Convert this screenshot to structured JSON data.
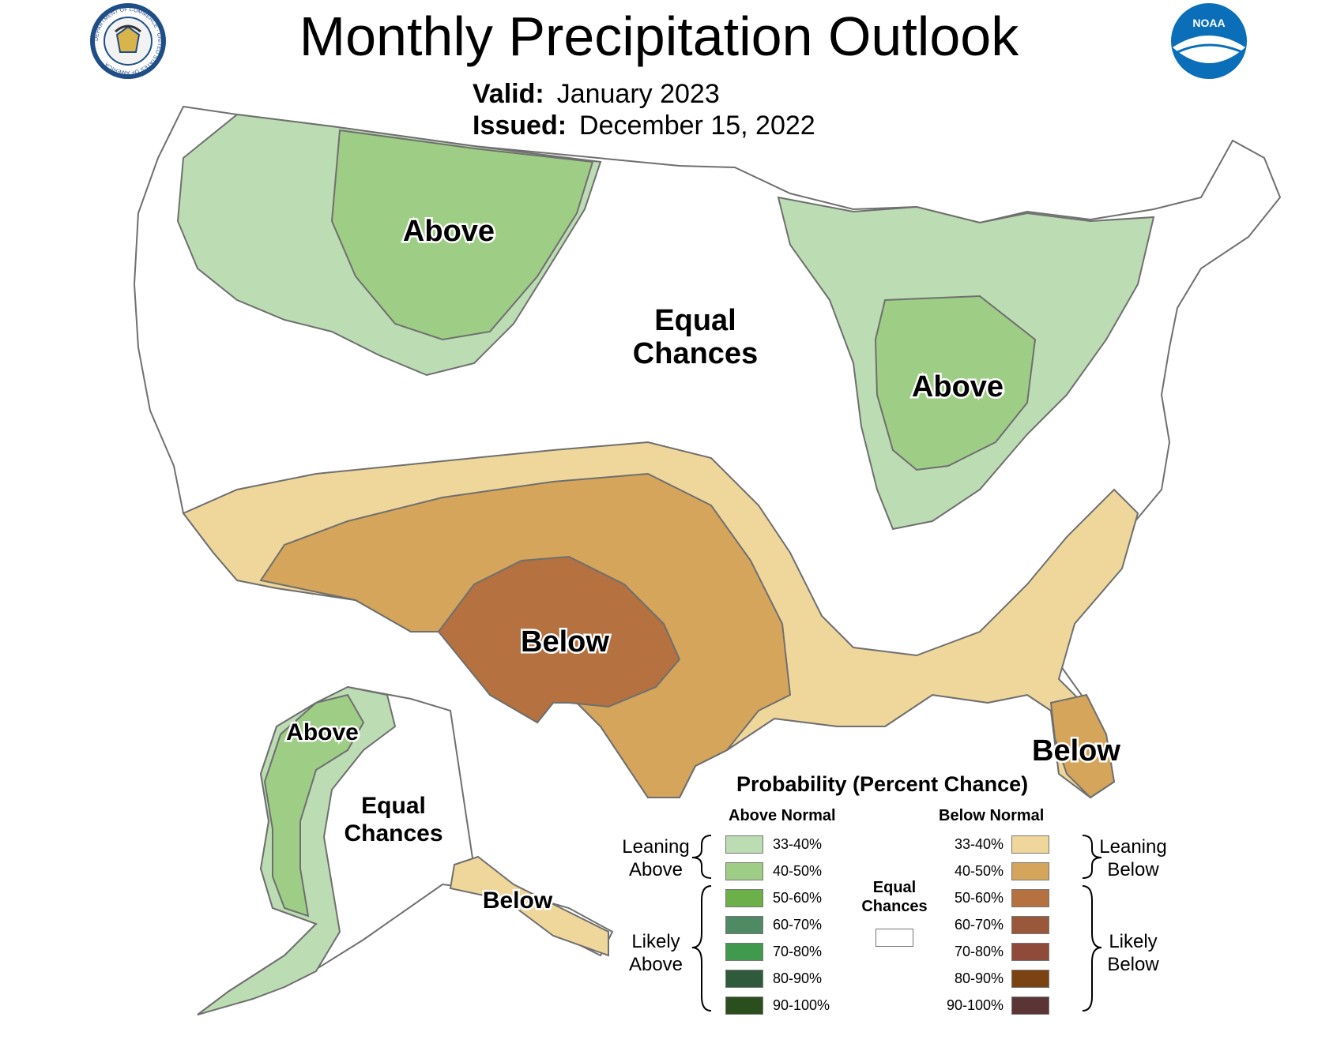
{
  "header": {
    "title": "Monthly Precipitation Outlook",
    "valid_label": "Valid:",
    "valid_value": "January 2023",
    "issued_label": "Issued:",
    "issued_value": "December 15, 2022"
  },
  "logos": {
    "left_icon": "department-of-commerce-seal-icon",
    "left_seal_text": "DEPARTMENT OF COMMERCE · UNITED STATES OF AMERICA",
    "right_icon": "noaa-logo-icon",
    "right_text": "NOAA"
  },
  "map_labels": {
    "northwest_above": "Above",
    "center_equal_1": "Equal",
    "center_equal_2": "Chances",
    "ohio_above": "Above",
    "southwest_below": "Below",
    "florida_below": "Below",
    "alaska_above": "Above",
    "alaska_equal_1": "Equal",
    "alaska_equal_2": "Chances",
    "alaska_below": "Below"
  },
  "legend": {
    "title": "Probability (Percent Chance)",
    "above_header": "Above Normal",
    "below_header": "Below Normal",
    "leaning_above": [
      "Leaning",
      "Above"
    ],
    "likely_above": [
      "Likely",
      "Above"
    ],
    "leaning_below": [
      "Leaning",
      "Below"
    ],
    "likely_below": [
      "Likely",
      "Below"
    ],
    "equal_chances": [
      "Equal",
      "Chances"
    ],
    "equal_color": "#ffffff",
    "ranges": [
      "33-40%",
      "40-50%",
      "50-60%",
      "60-70%",
      "70-80%",
      "80-90%",
      "90-100%"
    ],
    "above_colors": [
      "#bcdcb3",
      "#9ecd85",
      "#6cb04a",
      "#4e8a63",
      "#3f9a4e",
      "#305a3c",
      "#2b4e1f"
    ],
    "below_colors": [
      "#efd79c",
      "#d4a55a",
      "#b5713f",
      "#99583a",
      "#8f4a3a",
      "#7b4212",
      "#5b3535"
    ]
  },
  "map_colors": {
    "leaning_above": "#bcdcb3",
    "above_40_50": "#9ecd85",
    "leaning_below": "#efd79c",
    "below_40_50": "#d4a55a",
    "below_50_60": "#b5713f",
    "equal_chances": "#ffffff",
    "outline": "#6f6f6f"
  }
}
